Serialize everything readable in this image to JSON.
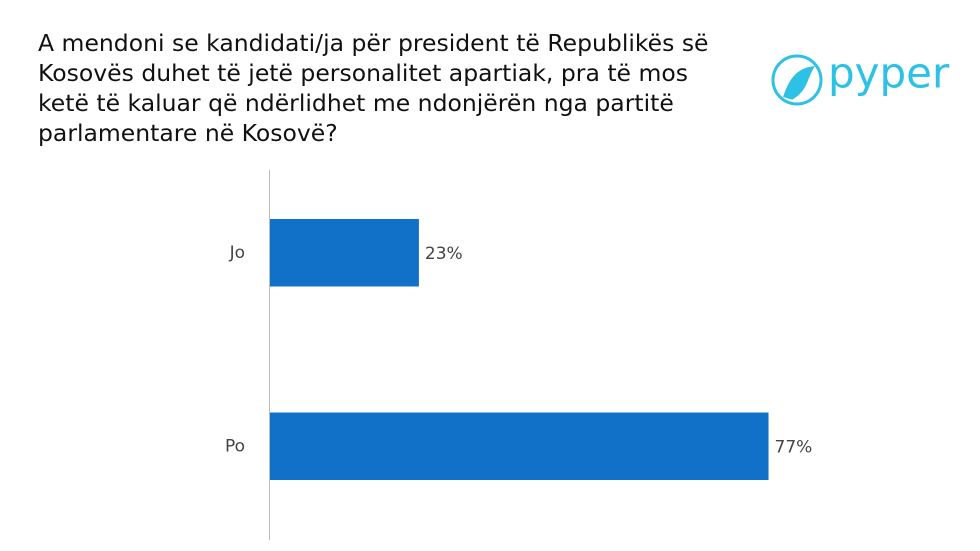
{
  "logo": "pyper",
  "chart_data": {
    "type": "hbar",
    "title": "A mendoni se kandidati/ja për president të Republikës së Kosovës duhet të jetë personalitet apartiak, pra të mos ketë të kaluar që ndërlidhet me ndonjërën nga partitë parlamentare në Kosovë?",
    "categories": [
      "Jo",
      "Po"
    ],
    "values": [
      23,
      77
    ],
    "value_labels": [
      "23%",
      "77%"
    ],
    "color": "#1170c8",
    "xlim": [
      0,
      78
    ]
  }
}
